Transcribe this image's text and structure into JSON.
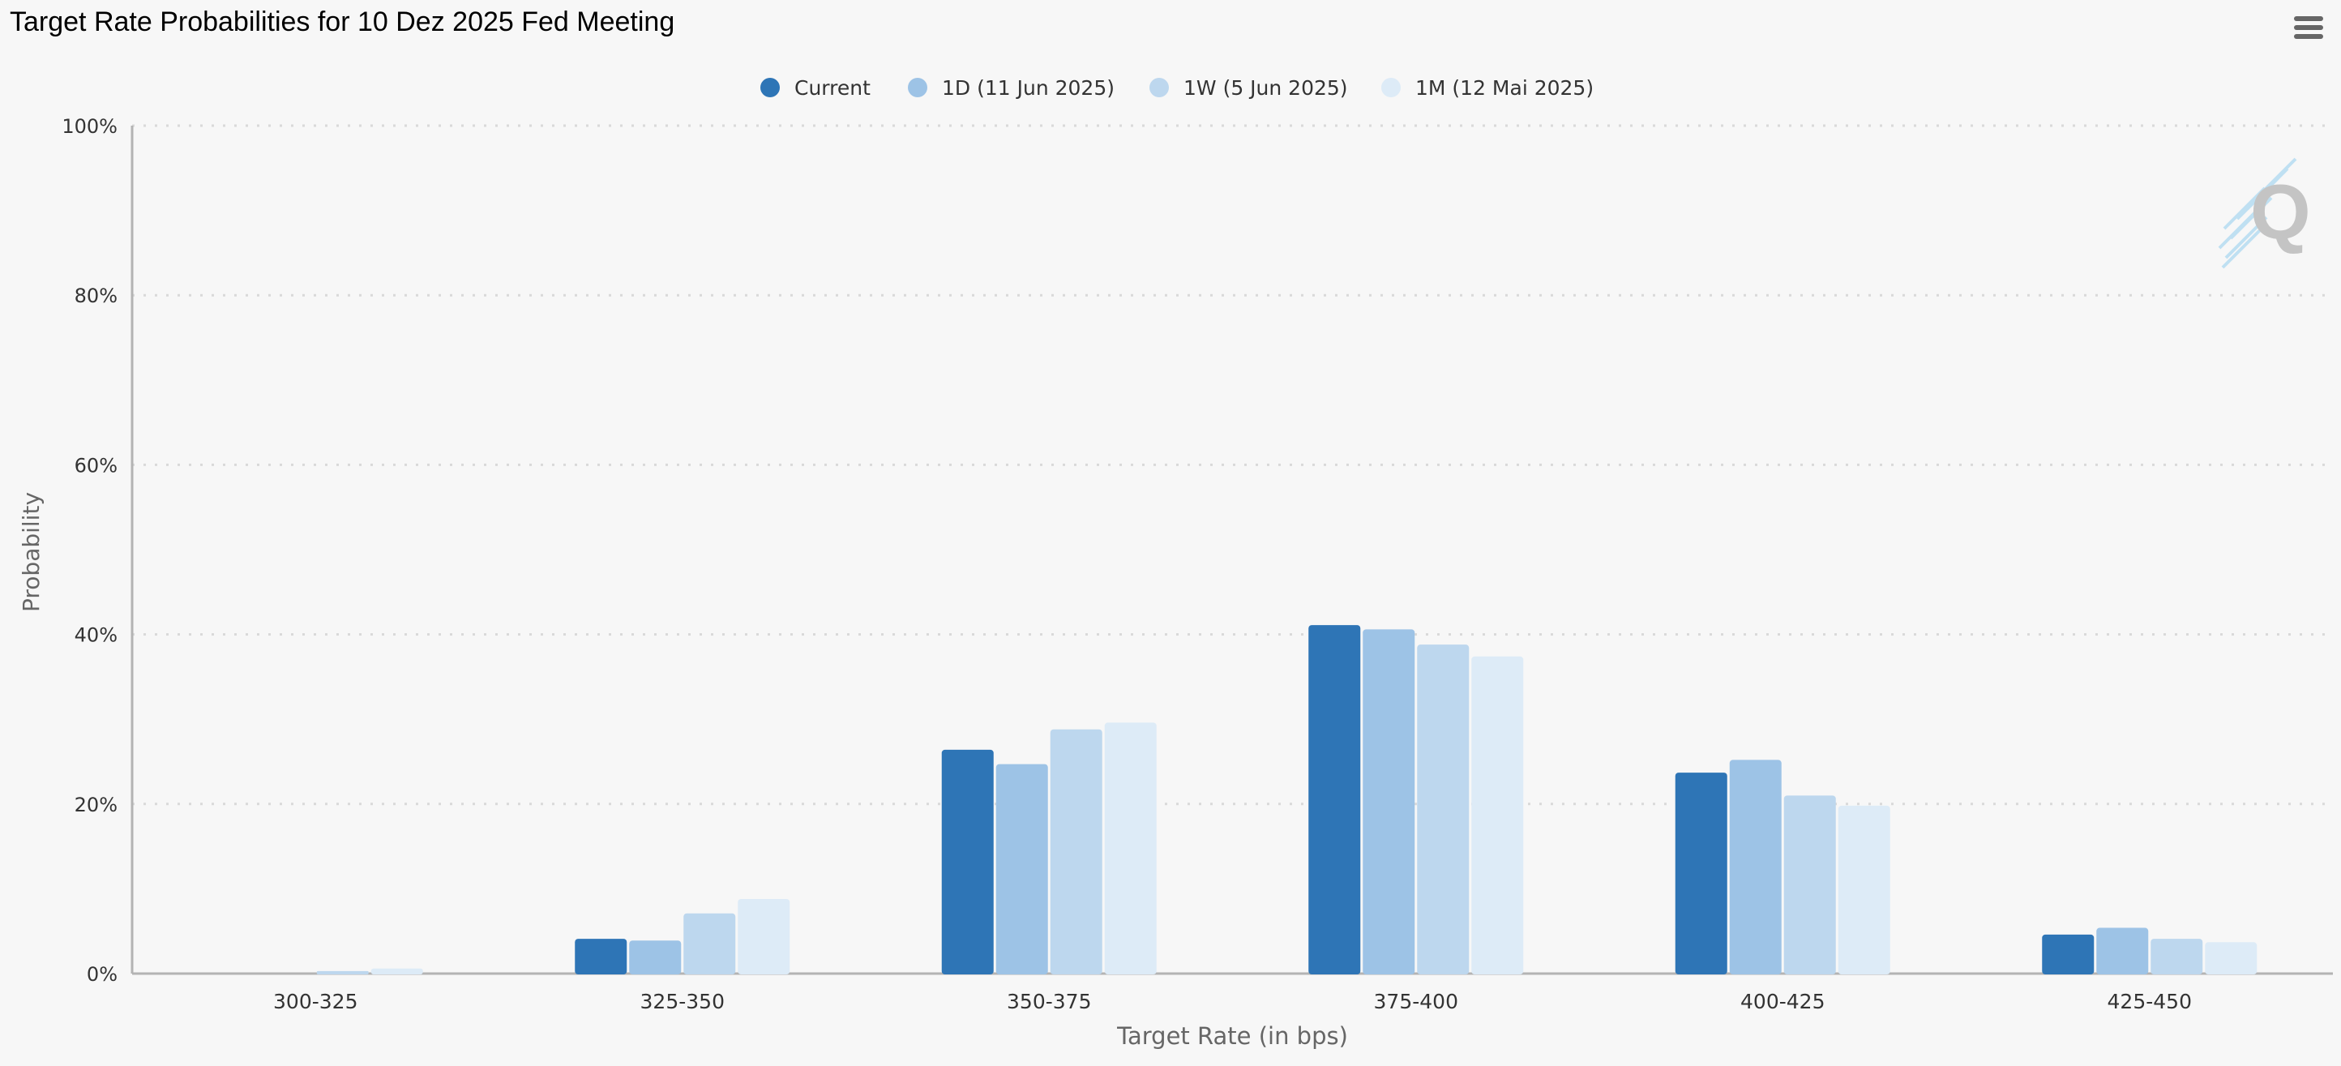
{
  "header": {
    "title": "Target Rate Probabilities for 10 Dez 2025 Fed Meeting"
  },
  "toolbar": {
    "menu_icon": "hamburger-menu-icon"
  },
  "watermark": {
    "text": "Q"
  },
  "colors": {
    "background": "#f7f7f7",
    "axis": "#b3b3b3",
    "grid": "#d9d9d9"
  },
  "chart_data": {
    "type": "bar",
    "xlabel": "Target Rate (in bps)",
    "ylabel": "Probability",
    "ylim": [
      0,
      100
    ],
    "yticks": [
      "0%",
      "20%",
      "40%",
      "60%",
      "80%",
      "100%"
    ],
    "grid": true,
    "legend_position": "top-center",
    "categories": [
      "300-325",
      "325-350",
      "350-375",
      "375-400",
      "400-425",
      "425-450"
    ],
    "series": [
      {
        "name": "Current",
        "color": "#2e75b6",
        "values": [
          0.0,
          4.1,
          26.4,
          41.1,
          23.7,
          4.6
        ]
      },
      {
        "name": "1D (11 Jun 2025)",
        "color": "#9dc3e6",
        "values": [
          0.0,
          3.9,
          24.7,
          40.6,
          25.2,
          5.4
        ]
      },
      {
        "name": "1W (5 Jun 2025)",
        "color": "#bdd7ee",
        "values": [
          0.3,
          7.1,
          28.8,
          38.8,
          21.0,
          4.1
        ]
      },
      {
        "name": "1M (12 Mai 2025)",
        "color": "#ddebf7",
        "values": [
          0.6,
          8.8,
          29.6,
          37.4,
          19.8,
          3.7
        ]
      }
    ]
  }
}
